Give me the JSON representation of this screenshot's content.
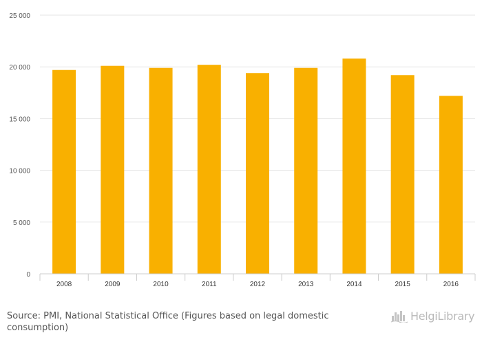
{
  "chart_data": {
    "type": "bar",
    "categories": [
      "2008",
      "2009",
      "2010",
      "2011",
      "2012",
      "2013",
      "2014",
      "2015",
      "2016"
    ],
    "values": [
      19700,
      20100,
      19900,
      20200,
      19400,
      19900,
      20800,
      19200,
      17200
    ],
    "title": "",
    "xlabel": "",
    "ylabel": "",
    "ylim": [
      0,
      25000
    ],
    "yticks": [
      0,
      5000,
      10000,
      15000,
      20000,
      25000
    ],
    "ytick_labels": [
      "0",
      "5 000",
      "10 000",
      "15 000",
      "20 000",
      "25 000"
    ],
    "grid": true,
    "legend": "none",
    "bar_color": "#f9b000"
  },
  "source_text": "Source: PMI, National Statistical Office (Figures based on legal domestic consumption)",
  "brand": {
    "name": "HelgiLibrary",
    "icon": "city-skyline-icon"
  }
}
